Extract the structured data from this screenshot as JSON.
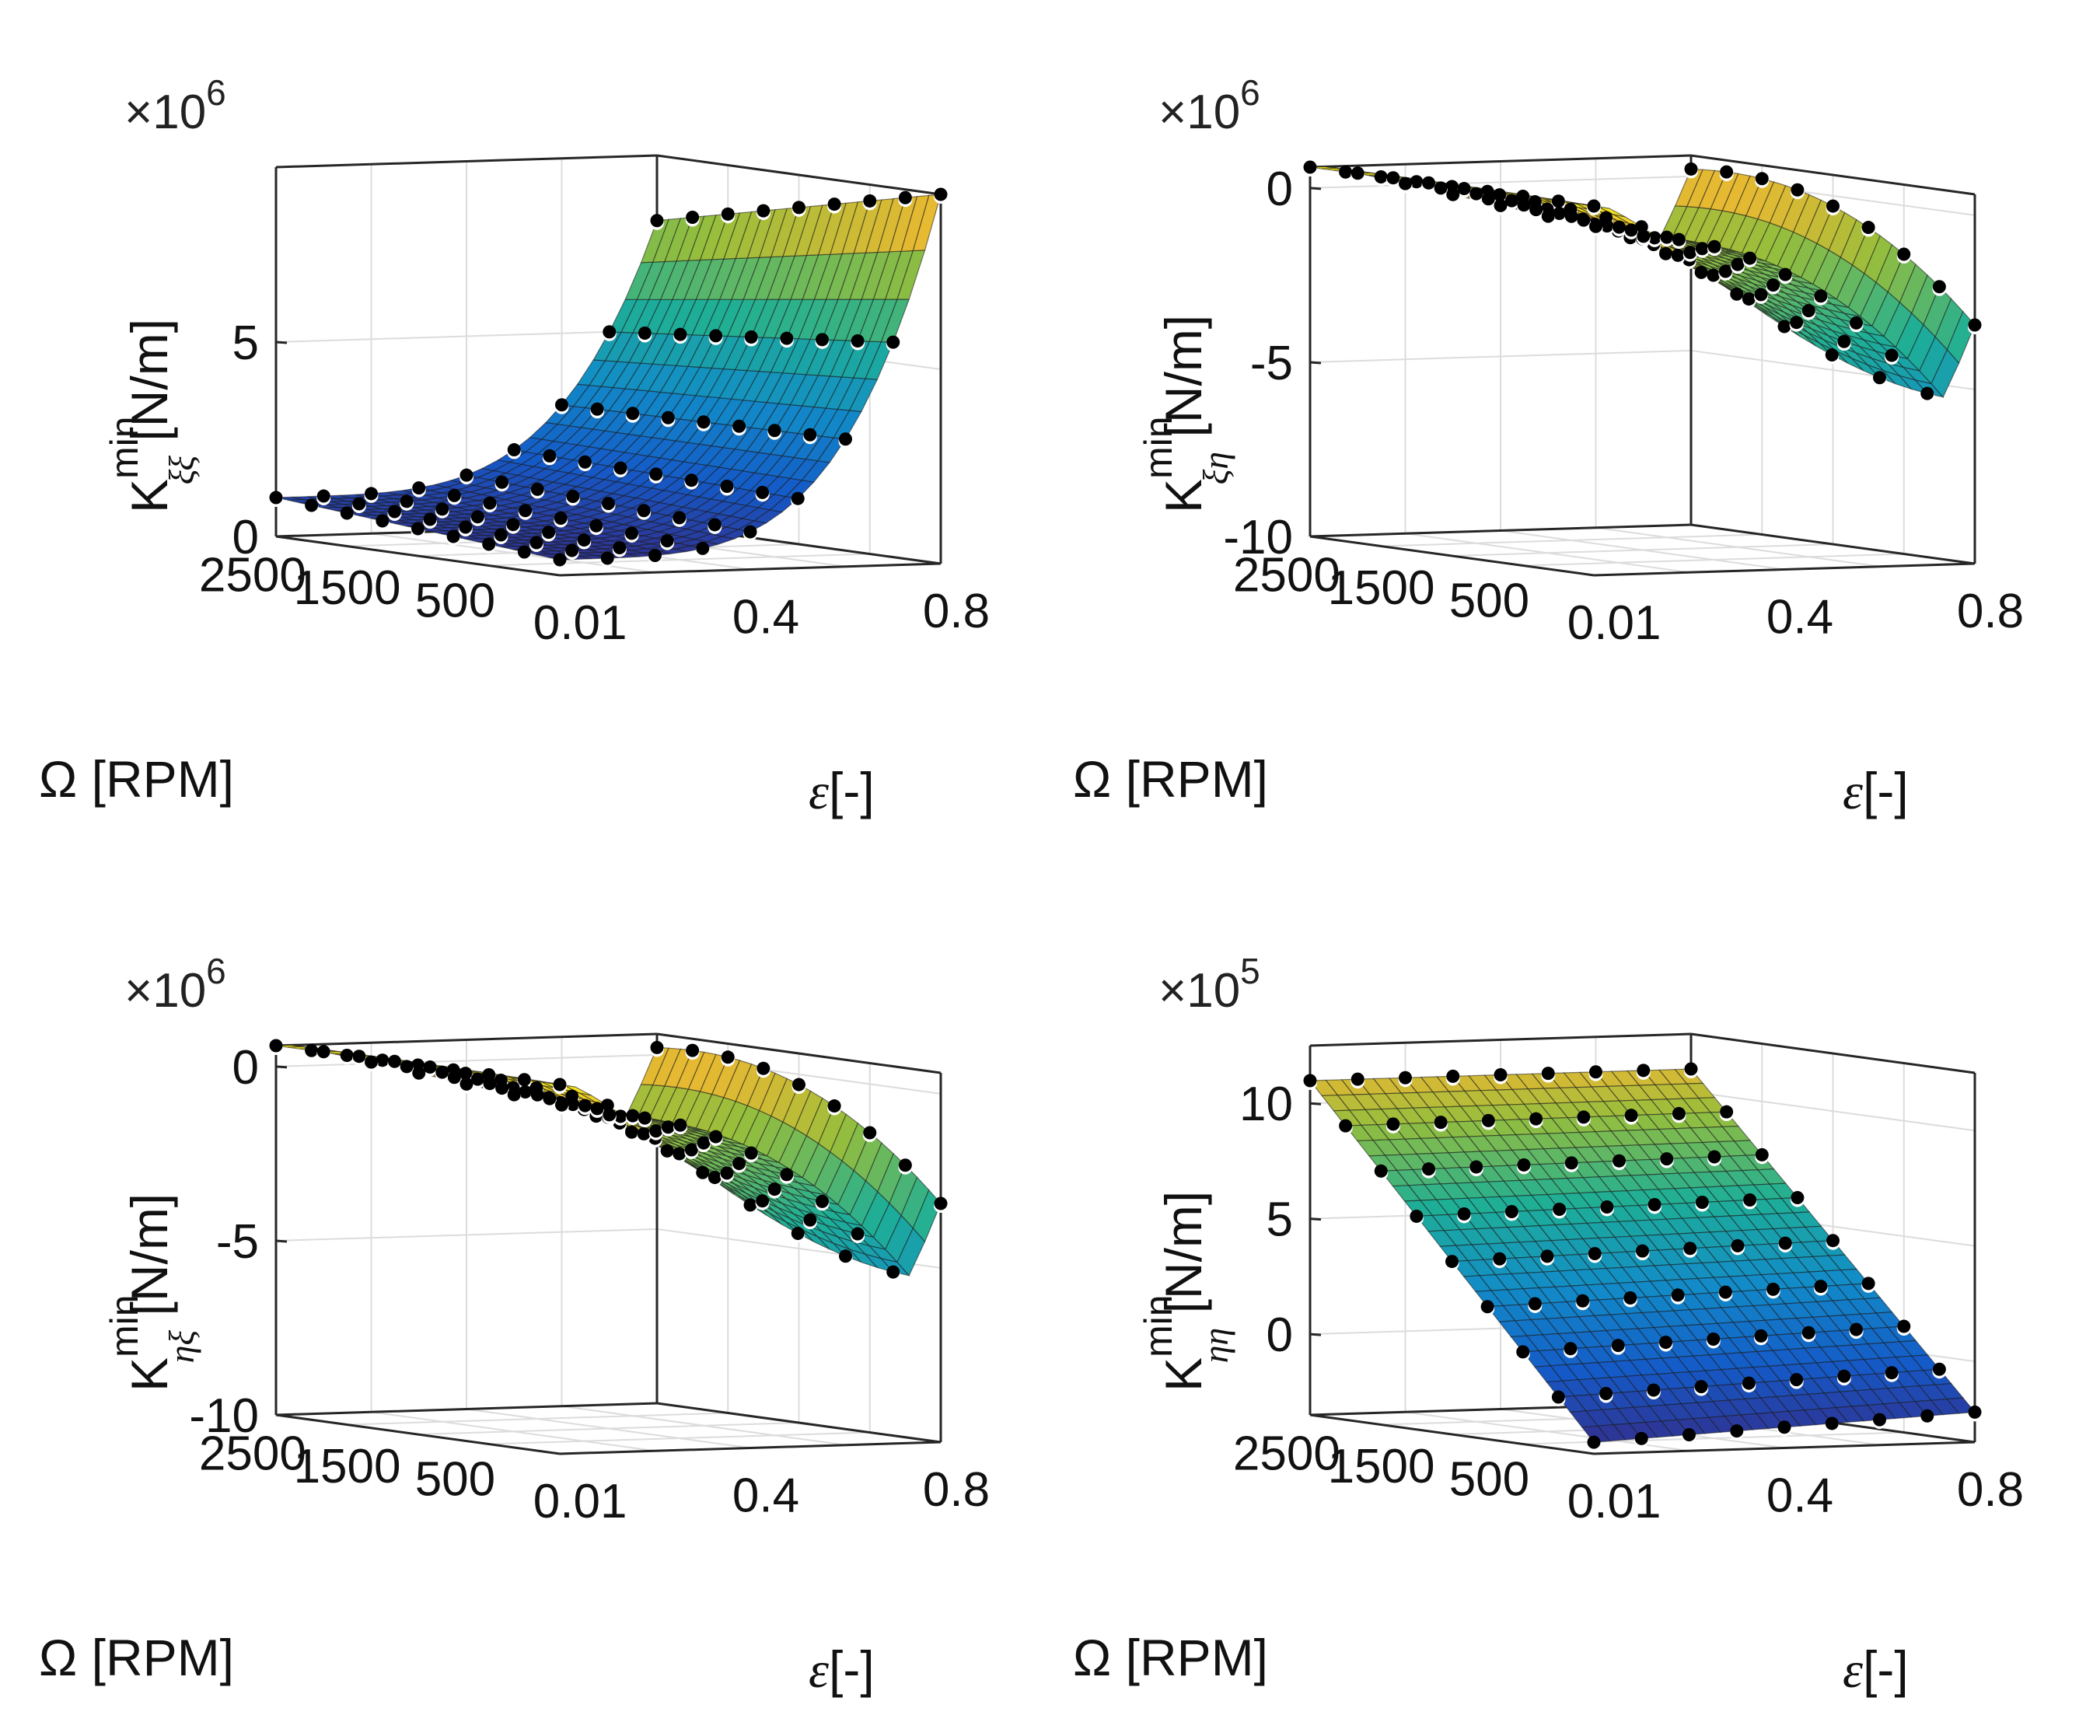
{
  "chart_data": [
    {
      "type": "surface3d",
      "zlabel_main": "K",
      "zlabel_sup": "min",
      "zlabel_sub": "ξξ",
      "zlabel_unit": " [N/m]",
      "multiplier_base": "×10",
      "multiplier_exp": "6",
      "xlabel": "Ω [RPM]",
      "ylabel_symbol": "ε",
      "ylabel_unit": "[-]",
      "x_ticks": [
        "500",
        "1500",
        "2500"
      ],
      "y_ticks": [
        "0.01",
        "0.4",
        "0.8"
      ],
      "z_ticks": [
        {
          "value": 0,
          "label": "0"
        },
        {
          "value": 5,
          "label": "5"
        }
      ],
      "x_range": [
        0,
        3000
      ],
      "y_range": [
        0,
        0.8
      ],
      "z_range": [
        0,
        9.5
      ],
      "surface": {
        "model": "kxx",
        "base": 0.4,
        "peak": 9.5,
        "y_power": 4,
        "rpm_gain": 0.25
      },
      "grid": true
    },
    {
      "type": "surface3d",
      "zlabel_main": "K",
      "zlabel_sup": "min",
      "zlabel_sub": "ξη",
      "zlabel_unit": " [N/m]",
      "multiplier_base": "×10",
      "multiplier_exp": "6",
      "xlabel": "Ω [RPM]",
      "ylabel_symbol": "ε",
      "ylabel_unit": "[-]",
      "x_ticks": [
        "500",
        "1500",
        "2500"
      ],
      "y_ticks": [
        "0.01",
        "0.4",
        "0.8"
      ],
      "z_ticks": [
        {
          "value": 0,
          "label": "0"
        },
        {
          "value": -5,
          "label": "-5"
        },
        {
          "value": -10,
          "label": "-10"
        }
      ],
      "x_range": [
        0,
        3000
      ],
      "y_range": [
        0,
        0.8
      ],
      "z_range": [
        -10,
        0.6
      ],
      "surface": {
        "model": "kxy",
        "dip": -6.5,
        "edge": -2.0
      },
      "grid": true
    },
    {
      "type": "surface3d",
      "zlabel_main": "K",
      "zlabel_sup": "min",
      "zlabel_sub": "ηξ",
      "zlabel_unit": " [N/m]",
      "multiplier_base": "×10",
      "multiplier_exp": "6",
      "xlabel": "Ω [RPM]",
      "ylabel_symbol": "ε",
      "ylabel_unit": "[-]",
      "x_ticks": [
        "500",
        "1500",
        "2500"
      ],
      "y_ticks": [
        "0.01",
        "0.4",
        "0.8"
      ],
      "z_ticks": [
        {
          "value": 0,
          "label": "0"
        },
        {
          "value": -5,
          "label": "-5"
        },
        {
          "value": -10,
          "label": "-10"
        }
      ],
      "x_range": [
        0,
        3000
      ],
      "y_range": [
        0,
        0.8
      ],
      "z_range": [
        -10,
        0.6
      ],
      "surface": {
        "model": "kxy",
        "dip": -6.5,
        "edge": -2.0
      },
      "grid": true
    },
    {
      "type": "surface3d",
      "zlabel_main": "K",
      "zlabel_sup": "min",
      "zlabel_sub": "ηη",
      "zlabel_unit": " [N/m]",
      "multiplier_base": "×10",
      "multiplier_exp": "5",
      "xlabel": "Ω [RPM]",
      "ylabel_symbol": "ε",
      "ylabel_unit": "[-]",
      "x_ticks": [
        "500",
        "1500",
        "2500"
      ],
      "y_ticks": [
        "0.01",
        "0.4",
        "0.8"
      ],
      "z_ticks": [
        {
          "value": 0,
          "label": "0"
        },
        {
          "value": 5,
          "label": "5"
        },
        {
          "value": 10,
          "label": "10"
        }
      ],
      "x_range": [
        0,
        3000
      ],
      "y_range": [
        0,
        0.8
      ],
      "z_range": [
        -3.5,
        12.5
      ],
      "surface": {
        "model": "kyy",
        "low": -3.0,
        "high": 12.2
      },
      "grid": true
    }
  ]
}
